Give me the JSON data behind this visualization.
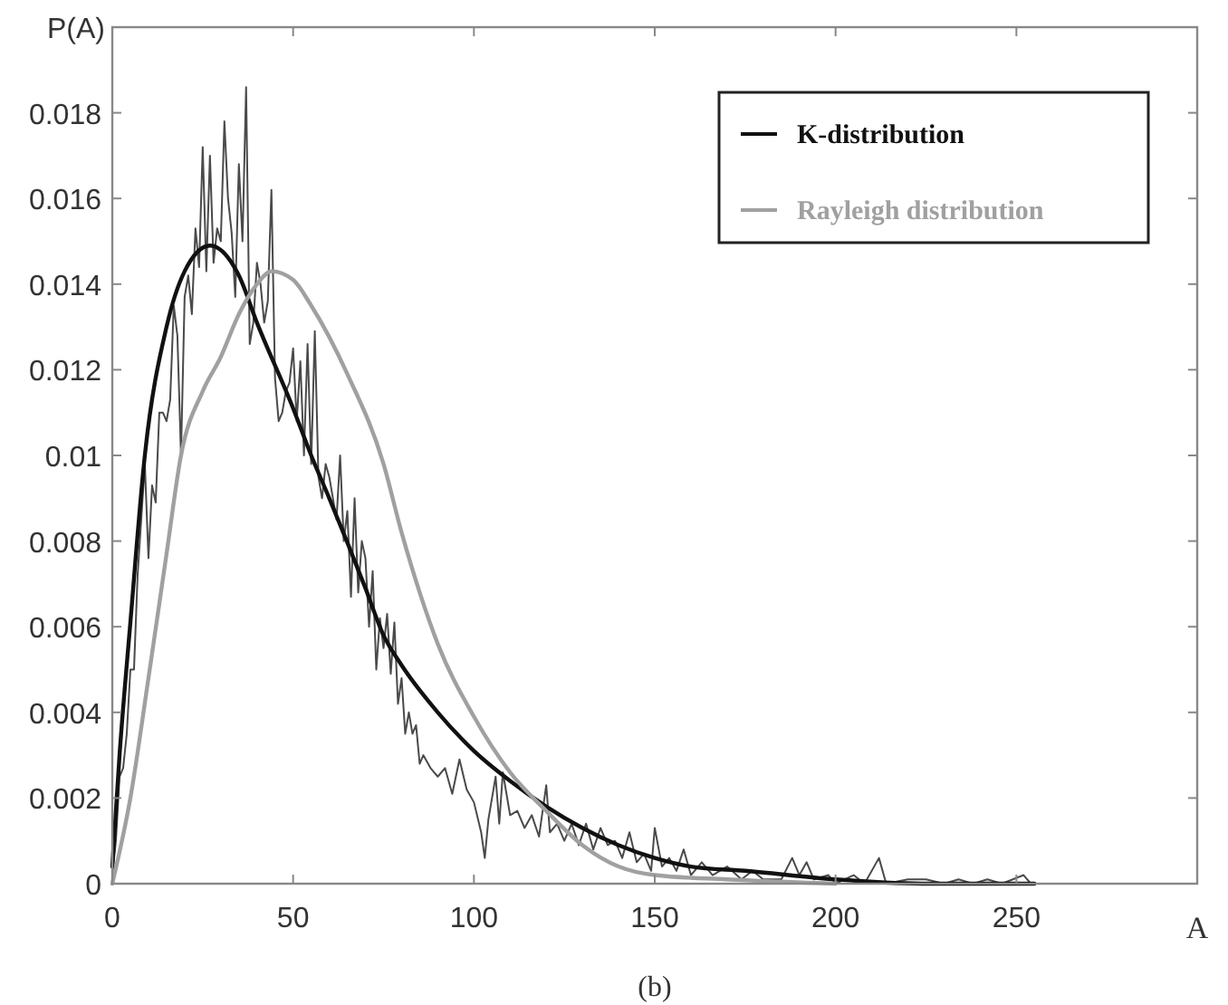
{
  "chart_data": {
    "type": "line",
    "ylabel": "P(A)",
    "xlabel": "A",
    "annotations": [
      "(b)"
    ],
    "xlim": [
      0,
      300
    ],
    "xticks": [
      0,
      50,
      100,
      150,
      200,
      250
    ],
    "ylim": [
      0,
      0.02
    ],
    "yticks": [
      0,
      0.002,
      0.004,
      0.006,
      0.008,
      0.01,
      0.012,
      0.014,
      0.016,
      0.018
    ],
    "grid": false,
    "legend": "top right",
    "marker": "none",
    "line_style": "solid",
    "series": [
      {
        "color": "#4a4a4a",
        "x": [
          0,
          1,
          2,
          3,
          4,
          5,
          6,
          7,
          8,
          9,
          10,
          11,
          12,
          13,
          14,
          15,
          16,
          17,
          18,
          19,
          20,
          21,
          22,
          23,
          24,
          25,
          26,
          27,
          28,
          29,
          30,
          31,
          32,
          33,
          34,
          35,
          36,
          37,
          38,
          39,
          40,
          41,
          42,
          43,
          44,
          45,
          46,
          47,
          48,
          49,
          50,
          51,
          52,
          53,
          54,
          55,
          56,
          57,
          58,
          59,
          60,
          62,
          63,
          64,
          65,
          66,
          67,
          68,
          69,
          70,
          71,
          72,
          73,
          74,
          75,
          76,
          77,
          78,
          79,
          80,
          81,
          82,
          83,
          84,
          85,
          86,
          88,
          90,
          92,
          94,
          96,
          98,
          100,
          102,
          103,
          104,
          106,
          107,
          108,
          110,
          112,
          114,
          116,
          118,
          120,
          121,
          123,
          125,
          127,
          129,
          131,
          133,
          135,
          137,
          139,
          141,
          143,
          145,
          147,
          149,
          150,
          152,
          154,
          156,
          158,
          160,
          163,
          166,
          170,
          174,
          177,
          180,
          185,
          188,
          190,
          192,
          194,
          198,
          200,
          205,
          208,
          212,
          214,
          220,
          225,
          230,
          234,
          238,
          242,
          246,
          252,
          254
        ],
        "values": [
          0.0002,
          0.001,
          0.0025,
          0.0027,
          0.0035,
          0.005,
          0.005,
          0.0072,
          0.0085,
          0.0098,
          0.0076,
          0.0093,
          0.0089,
          0.011,
          0.011,
          0.0108,
          0.0113,
          0.0135,
          0.0128,
          0.01,
          0.0137,
          0.0142,
          0.0133,
          0.0153,
          0.0144,
          0.0172,
          0.0143,
          0.017,
          0.0145,
          0.0153,
          0.015,
          0.0178,
          0.016,
          0.0152,
          0.0137,
          0.0168,
          0.015,
          0.0186,
          0.0126,
          0.0131,
          0.0145,
          0.014,
          0.0131,
          0.0136,
          0.0162,
          0.0118,
          0.0108,
          0.011,
          0.0115,
          0.0117,
          0.0125,
          0.0108,
          0.0122,
          0.01,
          0.0126,
          0.0098,
          0.0129,
          0.0095,
          0.009,
          0.0098,
          0.0095,
          0.0085,
          0.01,
          0.008,
          0.0087,
          0.0067,
          0.009,
          0.0068,
          0.008,
          0.0076,
          0.006,
          0.0073,
          0.005,
          0.0062,
          0.0055,
          0.0063,
          0.0049,
          0.0061,
          0.0042,
          0.0048,
          0.0035,
          0.004,
          0.0035,
          0.0037,
          0.0028,
          0.003,
          0.0027,
          0.0025,
          0.0027,
          0.0021,
          0.0029,
          0.0022,
          0.0019,
          0.0012,
          0.0006,
          0.0015,
          0.0025,
          0.0014,
          0.0026,
          0.0016,
          0.0017,
          0.0013,
          0.0016,
          0.0011,
          0.0023,
          0.0012,
          0.0014,
          0.001,
          0.0014,
          0.0009,
          0.0014,
          0.0008,
          0.0013,
          0.0009,
          0.001,
          0.0006,
          0.0012,
          0.0005,
          0.0007,
          0.0003,
          0.0013,
          0.0004,
          0.0006,
          0.0003,
          0.0008,
          0.0002,
          0.0005,
          0.0002,
          0.0004,
          0.0001,
          0.0003,
          0.0001,
          0.0001,
          0.0006,
          0.0002,
          0.0005,
          0.0001,
          0.0002,
          0,
          0.0002,
          0,
          0.0006,
          0,
          0.0001,
          0.0001,
          0,
          0.0001,
          0,
          0.0001,
          0,
          0.0002,
          0
        ]
      },
      {
        "name": "K-distribution",
        "color": "#111111",
        "x": [
          0,
          2,
          5,
          9,
          15,
          20,
          27,
          35,
          40,
          50,
          55,
          60,
          70,
          75,
          80,
          90,
          100,
          110,
          120,
          130,
          140,
          150,
          160,
          175,
          200,
          225,
          255
        ],
        "values": [
          0.0004,
          0.003,
          0.0061,
          0.01,
          0.013,
          0.0143,
          0.0149,
          0.0142,
          0.0131,
          0.0111,
          0.01,
          0.009,
          0.0069,
          0.0058,
          0.0051,
          0.004,
          0.0031,
          0.0024,
          0.0018,
          0.0013,
          0.0009,
          0.0006,
          0.0004,
          0.0003,
          0.0001,
          0,
          0
        ]
      },
      {
        "name": "Rayleigh distribution",
        "color": "#a0a0a0",
        "x": [
          0,
          5,
          10,
          15,
          19,
          25,
          30,
          35,
          40,
          44,
          50,
          55,
          65,
          75,
          80,
          85,
          90,
          100,
          110,
          120,
          130,
          140,
          150,
          170,
          200
        ],
        "values": [
          0,
          0.002,
          0.0048,
          0.0077,
          0.01,
          0.0115,
          0.0123,
          0.0133,
          0.014,
          0.0143,
          0.0141,
          0.0135,
          0.0119,
          0.0098,
          0.0082,
          0.0068,
          0.0056,
          0.0039,
          0.0026,
          0.0017,
          0.0009,
          0.0004,
          0.0002,
          0.0001,
          0
        ]
      }
    ]
  }
}
